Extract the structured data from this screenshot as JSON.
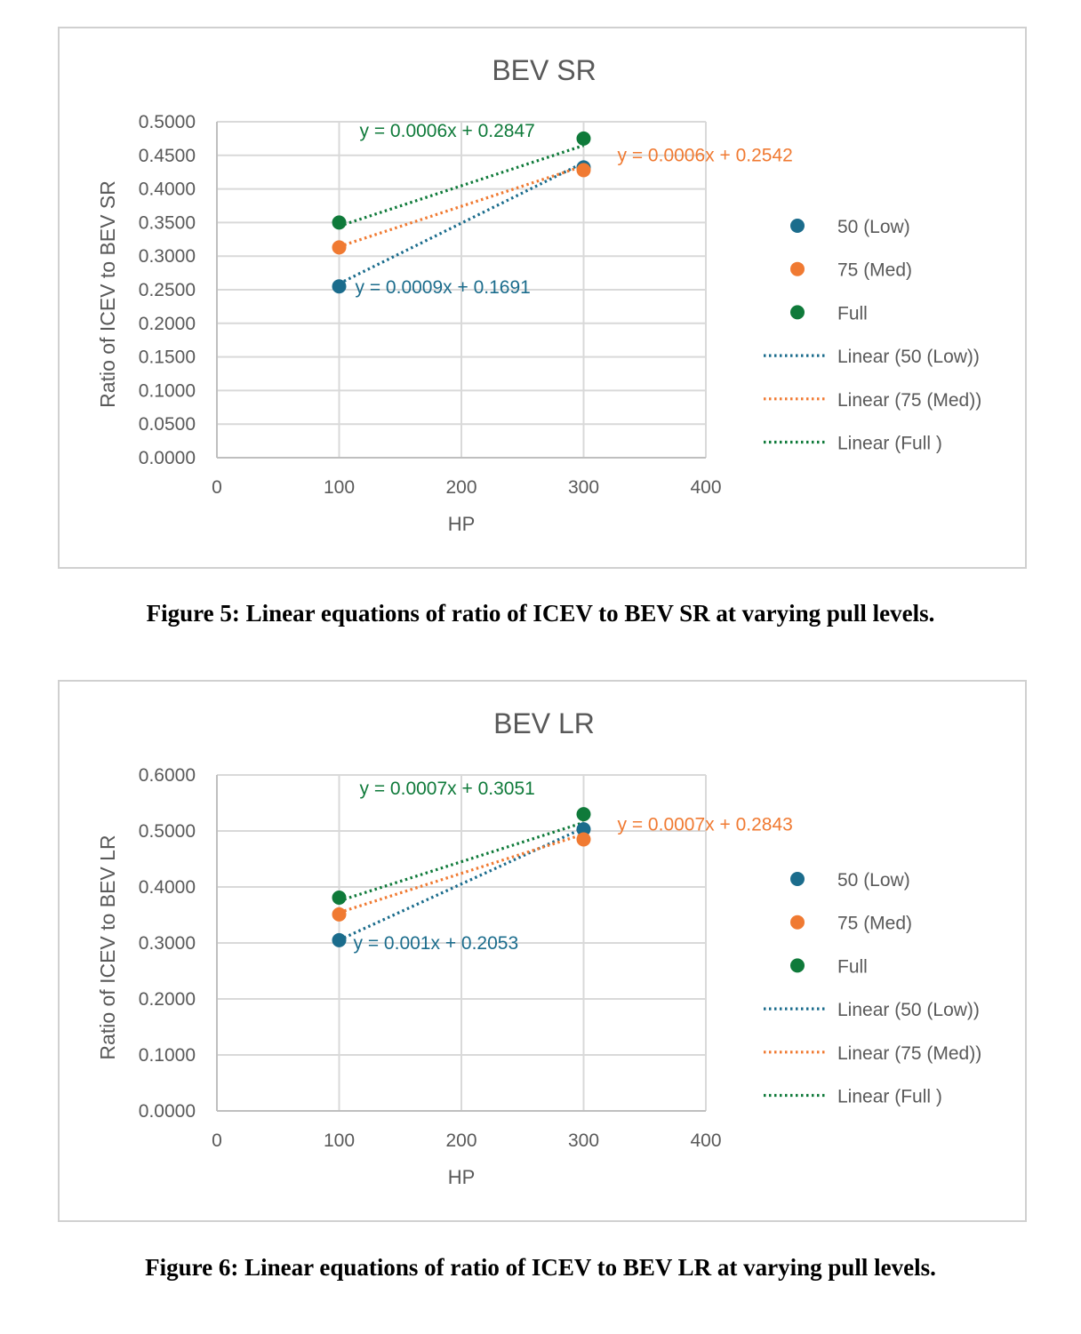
{
  "colors": {
    "low": "#1b6c8c",
    "med": "#f07a32",
    "full": "#0f7a3a",
    "grid": "#d9d9d9",
    "axis_text": "#595959"
  },
  "figures": [
    {
      "caption": "Figure 5: Linear equations of ratio of ICEV to BEV SR at varying pull levels.",
      "chart_data": {
        "type": "scatter",
        "title": "BEV SR",
        "xlabel": "HP",
        "ylabel": "Ratio of ICEV to BEV SR",
        "xlim": [
          0,
          400
        ],
        "ylim": [
          0,
          0.5
        ],
        "x_ticks": [
          0,
          100,
          200,
          300,
          400
        ],
        "x_tick_labels": [
          "0",
          "100",
          "200",
          "300",
          "400"
        ],
        "y_ticks": [
          0,
          0.05,
          0.1,
          0.15,
          0.2,
          0.25,
          0.3,
          0.35,
          0.4,
          0.45,
          0.5
        ],
        "y_tick_labels": [
          "0.0000",
          "0.0500",
          "0.1000",
          "0.1500",
          "0.2000",
          "0.2500",
          "0.3000",
          "0.3500",
          "0.4000",
          "0.4500",
          "0.5000"
        ],
        "grid": true,
        "legend_position": "right",
        "series": [
          {
            "key": "low",
            "name": "50 (Low)",
            "x": [
              100,
              300
            ],
            "y": [
              0.255,
              0.432
            ],
            "trendline_name": "Linear (50 (Low))",
            "equation": "y = 0.0009x + 0.1691",
            "slope": 0.0009,
            "intercept": 0.1691
          },
          {
            "key": "med",
            "name": "75 (Med)",
            "x": [
              100,
              300
            ],
            "y": [
              0.313,
              0.428
            ],
            "trendline_name": "Linear (75 (Med))",
            "equation": "y = 0.0006x + 0.2542",
            "slope": 0.0006,
            "intercept": 0.2542
          },
          {
            "key": "full",
            "name": "Full",
            "x": [
              100,
              300
            ],
            "y": [
              0.35,
              0.475
            ],
            "trendline_name": "Linear (Full )",
            "equation": "y = 0.0006x + 0.2847",
            "slope": 0.0006,
            "intercept": 0.2847
          }
        ]
      }
    },
    {
      "caption": "Figure 6: Linear equations of ratio of ICEV to BEV LR at varying pull levels.",
      "chart_data": {
        "type": "scatter",
        "title": "BEV LR",
        "xlabel": "HP",
        "ylabel": "Ratio of ICEV to BEV LR",
        "xlim": [
          0,
          400
        ],
        "ylim": [
          0,
          0.6
        ],
        "x_ticks": [
          0,
          100,
          200,
          300,
          400
        ],
        "x_tick_labels": [
          "0",
          "100",
          "200",
          "300",
          "400"
        ],
        "y_ticks": [
          0,
          0.1,
          0.2,
          0.3,
          0.4,
          0.5,
          0.6
        ],
        "y_tick_labels": [
          "0.0000",
          "0.1000",
          "0.2000",
          "0.3000",
          "0.4000",
          "0.5000",
          "0.6000"
        ],
        "grid": true,
        "legend_position": "right",
        "series": [
          {
            "key": "low",
            "name": "50 (Low)",
            "x": [
              100,
              300
            ],
            "y": [
              0.305,
              0.503
            ],
            "trendline_name": "Linear (50 (Low))",
            "equation": "y = 0.001x + 0.2053",
            "slope": 0.001,
            "intercept": 0.2053
          },
          {
            "key": "med",
            "name": "75 (Med)",
            "x": [
              100,
              300
            ],
            "y": [
              0.351,
              0.485
            ],
            "trendline_name": "Linear (75 (Med))",
            "equation": "y = 0.0007x + 0.2843",
            "slope": 0.0007,
            "intercept": 0.2843
          },
          {
            "key": "full",
            "name": "Full",
            "x": [
              100,
              300
            ],
            "y": [
              0.381,
              0.53
            ],
            "trendline_name": "Linear (Full )",
            "equation": "y = 0.0007x + 0.3051",
            "slope": 0.0007,
            "intercept": 0.3051
          }
        ]
      }
    }
  ]
}
